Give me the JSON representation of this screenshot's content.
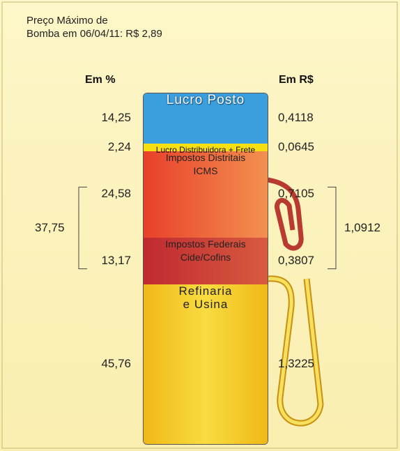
{
  "chart_data": {
    "type": "stacked_bar",
    "title": "Preço Máximo de\nBomba em 06/04/11: R$ 2,89",
    "left_header": "Em %",
    "right_header": "Em R$",
    "categories": [
      "Lucro Posto",
      "Lucro Distribuidora + Frete",
      "Impostos Distritais\nICMS",
      "Impostos Federais\nCide/Cofins",
      "Refinaria\ne Usina"
    ],
    "colors": [
      "#3a9fdc",
      "#f6df12",
      "#ec5a32",
      "#c8323a",
      "#f5c81e"
    ],
    "series": [
      {
        "name": "Em %",
        "values": [
          14.25,
          2.24,
          24.58,
          13.17,
          45.76
        ],
        "value_labels": [
          "14,25",
          "2,24",
          "24,58",
          "13,17",
          "45,76"
        ]
      },
      {
        "name": "Em R$",
        "values": [
          0.4118,
          0.0645,
          0.7105,
          0.3807,
          1.3225
        ],
        "value_labels": [
          "0,4118",
          "0,0645",
          "0,7105",
          "0,3807",
          "1,3225"
        ]
      }
    ],
    "group_totals": [
      {
        "value": 37.75,
        "label": "37,75"
      },
      {
        "value": 1.0912,
        "label": "1,0912"
      }
    ]
  }
}
